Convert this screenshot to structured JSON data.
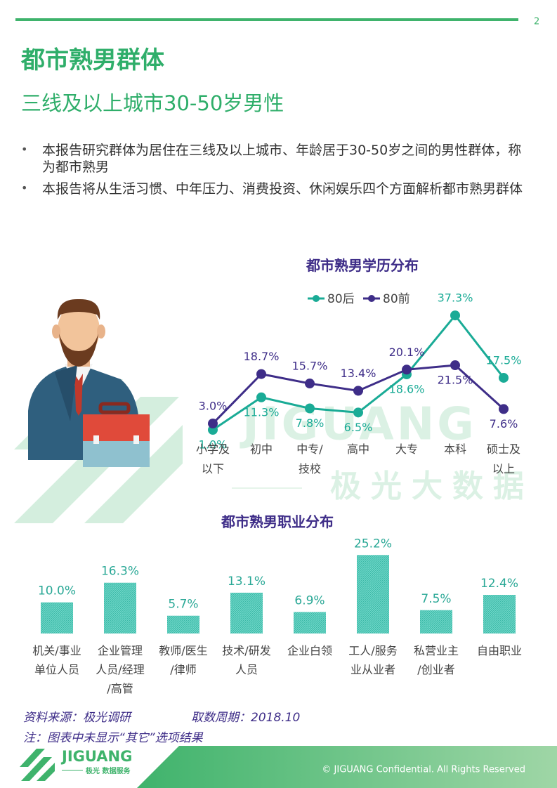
{
  "page_number": "2",
  "header": {
    "title": "都市熟男群体",
    "subtitle": "三线及以上城市30-50岁男性"
  },
  "bullets": [
    "本报告研究群体为居住在三线及以上城市、年龄居于30-50岁之间的男性群体，称为都市熟男",
    "本报告将从生活习惯、中年压力、消费投资、休闲娱乐四个方面解析都市熟男群体"
  ],
  "watermark": {
    "logo": "JIGUANG",
    "text": "极光大数据"
  },
  "chart_data": [
    {
      "type": "line",
      "title": "都市熟男学历分布",
      "categories": [
        "小学及\n以下",
        "初中",
        "中专/\n技校",
        "高中",
        "大专",
        "本科",
        "硕士及\n以上"
      ],
      "series": [
        {
          "name": "80后",
          "color": "#1aab96",
          "values": [
            1.0,
            11.3,
            7.8,
            6.5,
            18.6,
            37.3,
            17.5
          ],
          "value_labels": [
            "1.0%",
            "11.3%",
            "7.8%",
            "6.5%",
            "18.6%",
            "37.3%",
            "17.5%"
          ]
        },
        {
          "name": "80前",
          "color": "#3e2d88",
          "values": [
            3.0,
            18.7,
            15.7,
            13.4,
            20.1,
            21.5,
            7.6
          ],
          "value_labels": [
            "3.0%",
            "18.7%",
            "15.7%",
            "13.4%",
            "20.1%",
            "21.5%",
            "7.6%"
          ]
        }
      ],
      "ylim": [
        0,
        40
      ]
    },
    {
      "type": "bar",
      "title": "都市熟男职业分布",
      "categories": [
        "机关/事业\n单位人员",
        "企业管理\n人员/经理\n/高管",
        "教师/医生\n/律师",
        "技术/研发\n人员",
        "企业白领",
        "工人/服务\n业从业者",
        "私营业主\n/创业者",
        "自由职业"
      ],
      "values": [
        10.0,
        16.3,
        5.7,
        13.1,
        6.9,
        25.2,
        7.5,
        12.4
      ],
      "value_labels": [
        "10.0%",
        "16.3%",
        "5.7%",
        "13.1%",
        "6.9%",
        "25.2%",
        "7.5%",
        "12.4%"
      ],
      "color": "#3cc2b0",
      "ylim": [
        0,
        30
      ]
    }
  ],
  "footer": {
    "source": "资料来源：极光调研",
    "period": "取数周期：2018.10",
    "note": "注：图表中未显示“其它”选项结果",
    "logo": "JIGUANG",
    "logo_sub": "极光 数据服务",
    "copyright": "© JIGUANG Confidential. All Rights Reserved"
  }
}
